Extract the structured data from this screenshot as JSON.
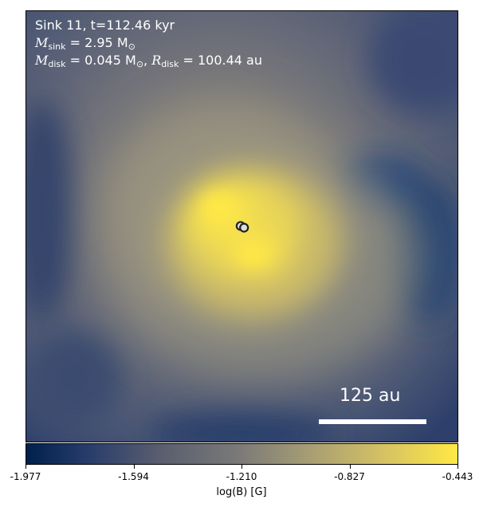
{
  "chart_data": {
    "type": "heatmap",
    "annotations": {
      "line1": "Sink 11, t=112.46 kyr",
      "line2_math": "M",
      "line2_sub": "sink",
      "line2_rest": " = 2.95 M",
      "line2_sun": "⊙",
      "line3_math": "M",
      "line3_sub": "disk",
      "line3_rest": " = 0.045 M",
      "line3_sun": "⊙",
      "line3_sep": ", ",
      "line3_r": "R",
      "line3_rsub": "disk",
      "line3_rrest": " = 100.44 au"
    },
    "scalebar_label": "125 au",
    "colorbar": {
      "label": "log(B) [G]",
      "min": -1.977,
      "max": -0.443,
      "ticks": [
        "-1.977",
        "-1.594",
        "-1.210",
        "-0.827",
        "-0.443"
      ],
      "colormap": "cividis",
      "colors": [
        "#00204c",
        "#575c6e",
        "#7c7b78",
        "#d3c064",
        "#ffe945"
      ]
    },
    "sinks": [
      {
        "x": 0.497,
        "y": 0.499
      },
      {
        "x": 0.505,
        "y": 0.503
      }
    ]
  }
}
